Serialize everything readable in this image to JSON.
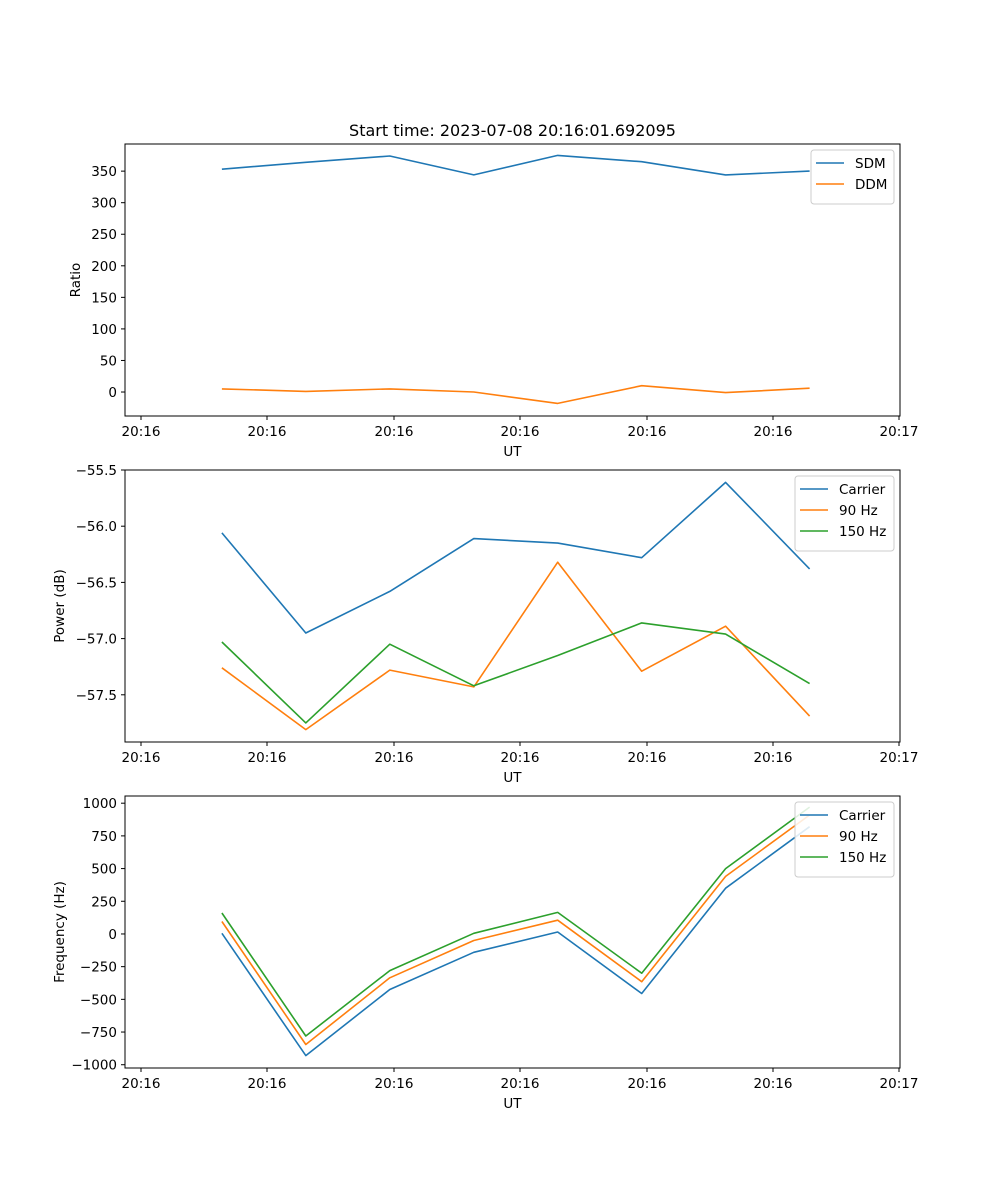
{
  "chart_data": [
    {
      "type": "line",
      "title": "Start time: 2023-07-08 20:16:01.692095",
      "xlabel": "UT",
      "ylabel": "Ratio",
      "xticks": [
        "20:16",
        "20:16",
        "20:16",
        "20:16",
        "20:16",
        "20:16",
        "20:17"
      ],
      "x": [
        0.75,
        1.4,
        2.05,
        2.7,
        3.35,
        4.0,
        4.65,
        5.3
      ],
      "xlim": [
        0,
        6
      ],
      "ylim": [
        -38,
        393
      ],
      "yticks": [
        0,
        50,
        100,
        150,
        200,
        250,
        300,
        350
      ],
      "yticklabels": [
        "0",
        "50",
        "100",
        "150",
        "200",
        "250",
        "300",
        "350"
      ],
      "legend_position": "top-right",
      "series": [
        {
          "name": "SDM",
          "color": "#1f77b4",
          "values": [
            353,
            364,
            374,
            344,
            375,
            365,
            344,
            350
          ]
        },
        {
          "name": "DDM",
          "color": "#ff7f0e",
          "values": [
            5,
            1,
            5,
            0,
            -18,
            10,
            -1,
            6
          ]
        }
      ]
    },
    {
      "type": "line",
      "title": "",
      "xlabel": "UT",
      "ylabel": "Power (dB)",
      "xticks": [
        "20:16",
        "20:16",
        "20:16",
        "20:16",
        "20:16",
        "20:16",
        "20:17"
      ],
      "x": [
        0.75,
        1.4,
        2.05,
        2.7,
        3.35,
        4.0,
        4.65,
        5.3
      ],
      "xlim": [
        0,
        6
      ],
      "ylim": [
        -57.92,
        -55.5
      ],
      "yticks": [
        -57.5,
        -57.0,
        -56.5,
        -56.0,
        -55.5
      ],
      "yticklabels": [
        "−57.5",
        "−57.0",
        "−56.5",
        "−56.0",
        "−55.5"
      ],
      "legend_position": "top-right",
      "series": [
        {
          "name": "Carrier",
          "color": "#1f77b4",
          "values": [
            -56.06,
            -56.95,
            -56.58,
            -56.11,
            -56.15,
            -56.28,
            -55.61,
            -56.38
          ]
        },
        {
          "name": "90 Hz",
          "color": "#ff7f0e",
          "values": [
            -57.26,
            -57.81,
            -57.28,
            -57.43,
            -56.32,
            -57.29,
            -56.89,
            -57.69
          ]
        },
        {
          "name": "150 Hz",
          "color": "#2ca02c",
          "values": [
            -57.03,
            -57.75,
            -57.05,
            -57.42,
            -57.15,
            -56.86,
            -56.96,
            -57.4
          ]
        }
      ]
    },
    {
      "type": "line",
      "title": "",
      "xlabel": "UT",
      "ylabel": "Frequency (Hz)",
      "xticks": [
        "20:16",
        "20:16",
        "20:16",
        "20:16",
        "20:16",
        "20:16",
        "20:17"
      ],
      "x": [
        0.75,
        1.4,
        2.05,
        2.7,
        3.35,
        4.0,
        4.65,
        5.3
      ],
      "xlim": [
        0,
        6
      ],
      "ylim": [
        -1025,
        1055
      ],
      "yticks": [
        -1000,
        -750,
        -500,
        -250,
        0,
        250,
        500,
        750,
        1000
      ],
      "yticklabels": [
        "−1000",
        "−750",
        "−500",
        "−250",
        "0",
        "250",
        "500",
        "750",
        "1000"
      ],
      "legend_position": "top-right",
      "series": [
        {
          "name": "Carrier",
          "color": "#1f77b4",
          "values": [
            5,
            -930,
            -425,
            -140,
            15,
            -455,
            350,
            820
          ]
        },
        {
          "name": "90 Hz",
          "color": "#ff7f0e",
          "values": [
            95,
            -845,
            -335,
            -50,
            105,
            -365,
            440,
            910
          ]
        },
        {
          "name": "150 Hz",
          "color": "#2ca02c",
          "values": [
            160,
            -780,
            -280,
            5,
            165,
            -300,
            500,
            970
          ]
        }
      ]
    }
  ]
}
